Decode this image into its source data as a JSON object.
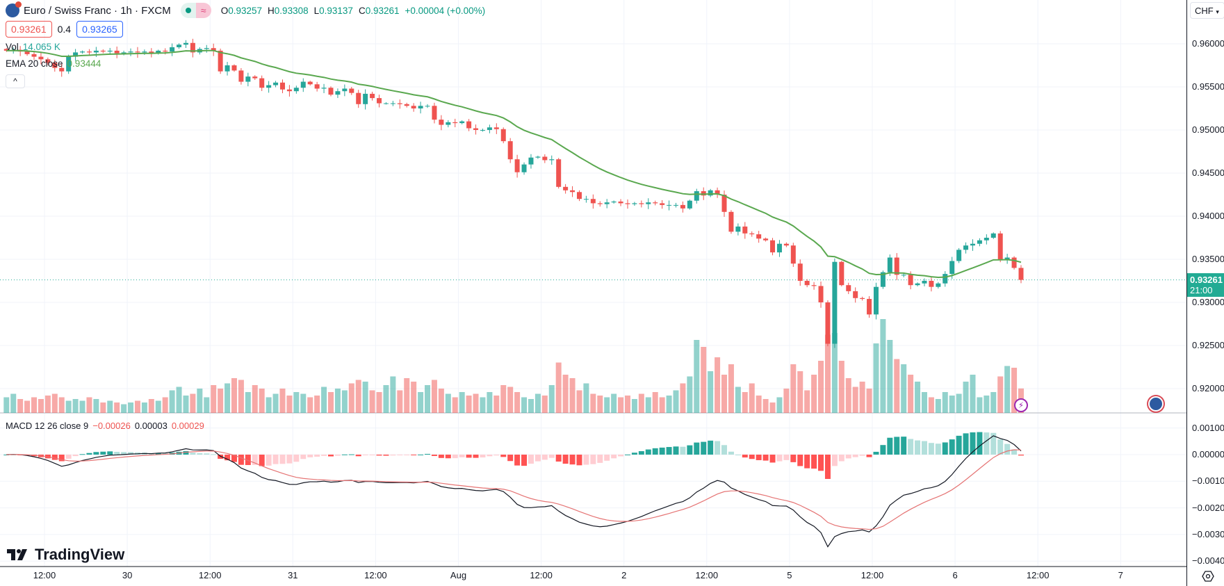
{
  "header": {
    "title": "Euro / Swiss Franc · 1h · FXCM",
    "market_status_icon": "green-dot-icon",
    "symbol_icon": "eu-flag-icon",
    "replay_badge": "≈",
    "ohlc": {
      "o_label": "O",
      "o": "0.93257",
      "h_label": "H",
      "h": "0.93308",
      "l_label": "L",
      "l": "0.93137",
      "c_label": "C",
      "c": "0.93261",
      "change": "+0.00004 (+0.00%)"
    }
  },
  "trade": {
    "sell": "0.93261",
    "spread": "0.4",
    "buy": "0.93265"
  },
  "legend": {
    "vol_label": "Vol",
    "vol_value": "14.065 K",
    "ema_label": "EMA 20 close",
    "ema_value": "0.93444",
    "collapse": "^",
    "macd_label": "MACD 12 26 close 9",
    "macd_hist": "−0.00026",
    "macd_line": "0.00003",
    "macd_signal": "0.00029"
  },
  "axis": {
    "currency": "CHF",
    "current_price": "0.93261",
    "countdown": "21:00"
  },
  "branding": "TradingView",
  "colors": {
    "up": "#26a69a",
    "down": "#ef5350",
    "ema": "#5aa84f",
    "macd": "#131722",
    "signal": "#e57373",
    "grid": "#f0f3fa"
  },
  "chart_data": {
    "type": "candlestick",
    "price_ticks": [
      "0.96000",
      "0.95500",
      "0.95000",
      "0.94500",
      "0.94000",
      "0.93500",
      "0.93000",
      "0.92500",
      "0.92000"
    ],
    "price_range": [
      0.92,
      0.96
    ],
    "macd_ticks": [
      "0.00100",
      "0.00000",
      "−0.00100",
      "−0.00200",
      "−0.00300",
      "−0.00400"
    ],
    "macd_range": [
      -0.004,
      0.001
    ],
    "time_labels": [
      "12:00",
      "30",
      "12:00",
      "31",
      "12:00",
      "Aug",
      "12:00",
      "2",
      "12:00",
      "5",
      "12:00",
      "6",
      "12:00",
      "7"
    ],
    "ema_period": 20,
    "macd_params": [
      12,
      26,
      9
    ],
    "close": [
      0.9592,
      0.9593,
      0.9591,
      0.9588,
      0.9585,
      0.9582,
      0.9578,
      0.9572,
      0.9568,
      0.9585,
      0.959,
      0.9591,
      0.959,
      0.9592,
      0.9591,
      0.9592,
      0.9589,
      0.959,
      0.9591,
      0.959,
      0.9591,
      0.9589,
      0.9592,
      0.9591,
      0.9596,
      0.9599,
      0.9601,
      0.959,
      0.9594,
      0.9595,
      0.9592,
      0.9568,
      0.9575,
      0.9569,
      0.9556,
      0.9562,
      0.956,
      0.9549,
      0.9552,
      0.9555,
      0.9547,
      0.9545,
      0.9549,
      0.9556,
      0.9553,
      0.9548,
      0.9549,
      0.9541,
      0.9545,
      0.9548,
      0.9543,
      0.953,
      0.9542,
      0.9537,
      0.9531,
      0.9531,
      0.9531,
      0.953,
      0.9528,
      0.9525,
      0.9528,
      0.9528,
      0.9512,
      0.9506,
      0.9509,
      0.9508,
      0.951,
      0.9502,
      0.95,
      0.95,
      0.9503,
      0.9501,
      0.9487,
      0.9466,
      0.9451,
      0.946,
      0.9468,
      0.9469,
      0.9465,
      0.9466,
      0.9434,
      0.943,
      0.9428,
      0.942,
      0.942,
      0.9415,
      0.9414,
      0.9416,
      0.9417,
      0.9415,
      0.9414,
      0.9415,
      0.9414,
      0.9416,
      0.9415,
      0.9413,
      0.9413,
      0.9413,
      0.9409,
      0.9418,
      0.9429,
      0.9424,
      0.943,
      0.9425,
      0.9405,
      0.9382,
      0.9388,
      0.938,
      0.9379,
      0.9374,
      0.9372,
      0.9358,
      0.9368,
      0.9366,
      0.9345,
      0.9325,
      0.932,
      0.9319,
      0.93,
      0.9252,
      0.9347,
      0.932,
      0.9313,
      0.9305,
      0.9304,
      0.9286,
      0.9318,
      0.9335,
      0.9352,
      0.9332,
      0.9332,
      0.932,
      0.9322,
      0.9325,
      0.9318,
      0.9322,
      0.9333,
      0.9348,
      0.9361,
      0.9366,
      0.9368,
      0.9372,
      0.9375,
      0.938,
      0.935,
      0.9352,
      0.934,
      0.93261
    ],
    "volume_k": [
      9,
      11,
      8,
      7,
      9,
      8,
      10,
      11,
      9,
      7,
      8,
      7,
      9,
      8,
      6,
      7,
      6,
      5,
      6,
      7,
      6,
      8,
      7,
      9,
      13,
      15,
      10,
      11,
      14,
      9,
      16,
      14,
      17,
      20,
      19,
      12,
      16,
      14,
      9,
      11,
      14,
      10,
      12,
      11,
      9,
      10,
      15,
      12,
      14,
      13,
      17,
      19,
      18,
      13,
      12,
      16,
      21,
      13,
      20,
      18,
      12,
      16,
      19,
      14,
      11,
      9,
      12,
      10,
      11,
      9,
      12,
      10,
      16,
      15,
      12,
      9,
      8,
      11,
      10,
      16,
      29,
      22,
      20,
      13,
      17,
      11,
      10,
      9,
      11,
      9,
      10,
      8,
      11,
      9,
      12,
      9,
      10,
      13,
      17,
      21,
      42,
      38,
      24,
      32,
      22,
      28,
      15,
      12,
      17,
      10,
      8,
      6,
      9,
      14,
      28,
      24,
      13,
      22,
      30,
      45,
      46,
      30,
      20,
      15,
      18,
      14,
      40,
      54,
      42,
      31,
      28,
      22,
      18,
      12,
      9,
      8,
      12,
      10,
      11,
      18,
      22,
      9,
      10,
      12,
      21,
      27,
      26,
      14.065
    ]
  }
}
